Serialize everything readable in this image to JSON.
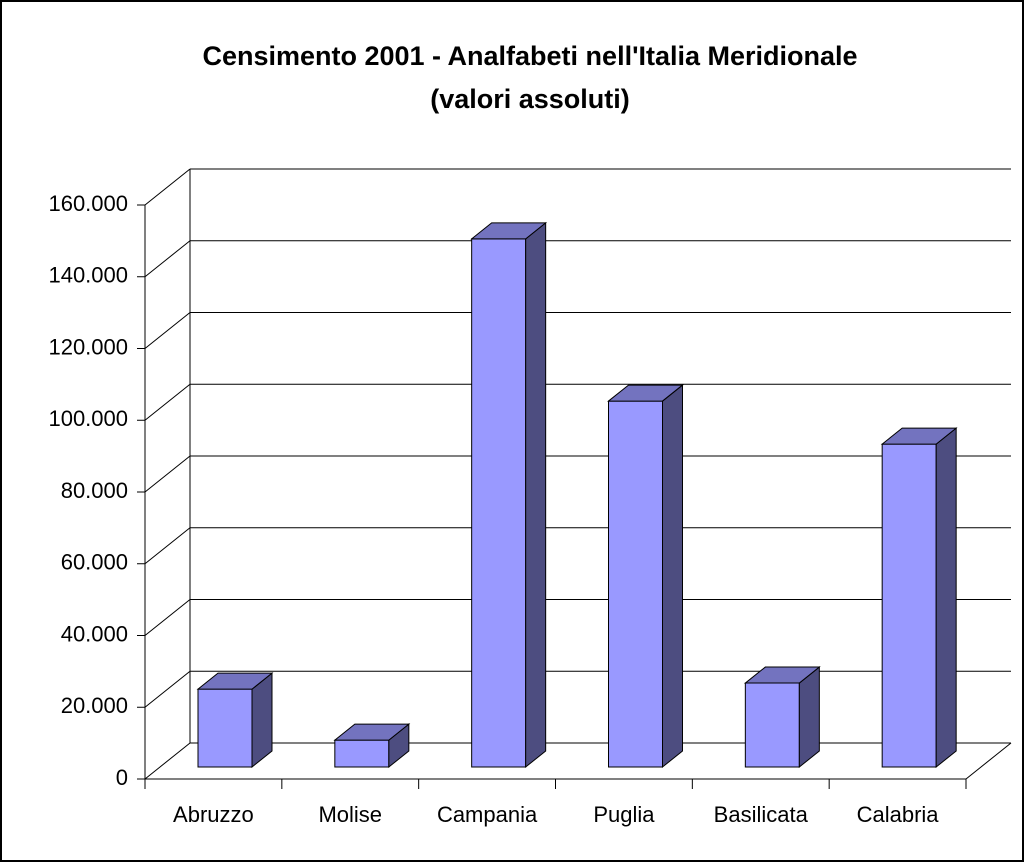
{
  "chart_data": {
    "type": "bar3d",
    "title": [
      "Censimento 2001 - Analfabeti nell'Italia Meridionale",
      "(valori assoluti)"
    ],
    "categories": [
      "Abruzzo",
      "Molise",
      "Campania",
      "Puglia",
      "Basilicata",
      "Calabria"
    ],
    "values": [
      21700,
      7500,
      147200,
      102000,
      23400,
      90000
    ],
    "color": "#9999ff",
    "ylim": [
      0,
      160000
    ],
    "yticks": [
      0,
      {
        "value": 20000,
        "label": "20.000"
      },
      {
        "value": 40000,
        "label": "40.000"
      },
      {
        "value": 60000,
        "label": "60.000"
      },
      {
        "value": 80000,
        "label": "80.000"
      },
      {
        "value": 100000,
        "label": "100.000"
      },
      {
        "value": 120000,
        "label": "120.000"
      },
      {
        "value": 140000,
        "label": "140.000"
      },
      {
        "value": 160000,
        "label": "160.000"
      }
    ],
    "grid": true
  }
}
